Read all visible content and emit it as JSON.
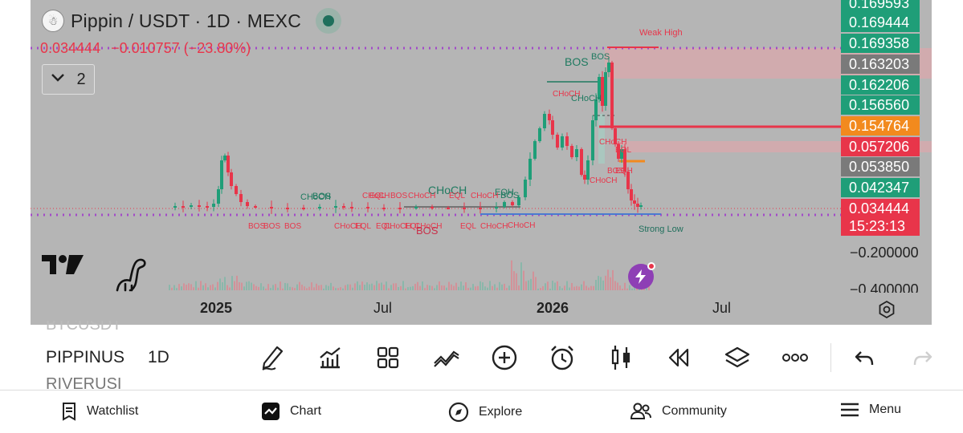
{
  "header": {
    "symbol_title": "Pippin / USDT · 1D · MEXC",
    "last_price": "0.034444",
    "change": "−0.010757 (−23.80%)",
    "collapsed_count": "2"
  },
  "chart_annotations": {
    "weak_high": "Weak High",
    "strong_low": "Strong Low",
    "labels_teal": [
      "BOS",
      "CHoCH",
      "BOS",
      "CHoCH",
      "BOS",
      "BOS",
      "CHoCH",
      "EQH"
    ],
    "labels_red": [
      "BOS",
      "BOS",
      "BOS",
      "CHoCH",
      "EQL",
      "EQL",
      "CHoCH",
      "EQL",
      "CHoCH",
      "BOS",
      "EQL",
      "CHoCH",
      "CHoCH",
      "CHoCH",
      "BOS",
      "EQL",
      "CHoCH",
      "EQL",
      "CHoCH",
      "CHoCH",
      "CHoCH",
      "EQL",
      "BOS",
      "EQH",
      "CHoCH"
    ]
  },
  "price_axis": {
    "tags": [
      {
        "value": "0.169593",
        "color": "#1f9e78"
      },
      {
        "value": "0.169444",
        "color": "#1f9e78"
      },
      {
        "value": "0.169358",
        "color": "#1f9e78"
      },
      {
        "value": "0.163203",
        "color": "#7a7a7a"
      },
      {
        "value": "0.162206",
        "color": "#1f9e78"
      },
      {
        "value": "0.156560",
        "color": "#1f9e78"
      },
      {
        "value": "0.154764",
        "color": "#f28a1e"
      },
      {
        "value": "0.057206",
        "color": "#e8354a"
      },
      {
        "value": "0.053850",
        "color": "#7a7a7a"
      },
      {
        "value": "0.042347",
        "color": "#1f9e78"
      },
      {
        "value": "0.034444",
        "color": "#e8354a"
      }
    ],
    "countdown": "15:23:13",
    "plain": [
      "−0.200000",
      "−0.400000"
    ]
  },
  "time_axis": [
    {
      "label": "2025",
      "bold": true
    },
    {
      "label": "Jul",
      "bold": false
    },
    {
      "label": "2026",
      "bold": true
    },
    {
      "label": "Jul",
      "bold": false
    }
  ],
  "watchlist": {
    "prev_symbol": "BTCUSDT",
    "current_symbol": "PIPPINUS",
    "next_symbol": "RIVERUSI",
    "interval": "1D"
  },
  "toolbar": {
    "icons": [
      "draw-icon",
      "indicators-icon",
      "templates-icon",
      "compare-icon",
      "add-icon",
      "alert-icon",
      "chart-type-icon",
      "replay-icon",
      "layers-icon",
      "more-icon",
      "undo-icon",
      "redo-icon"
    ]
  },
  "bottom_nav": {
    "watchlist": "Watchlist",
    "chart": "Chart",
    "explore": "Explore",
    "community": "Community",
    "menu": "Menu"
  },
  "colors": {
    "bull": "#1f9e78",
    "bear": "#e8354a",
    "purple_line": "#a24bc8",
    "chart_bg": "#b5b5b5"
  },
  "chart_data": {
    "type": "candlestick",
    "symbol": "Pippin / USDT",
    "interval": "1D",
    "exchange": "MEXC",
    "last": 0.034444,
    "change": -0.010757,
    "change_pct": -23.8,
    "levels": {
      "weak_high": 0.169358,
      "strong_low": 0.034444,
      "resistance": 0.154764
    },
    "x_ticks": [
      "2025",
      "Jul",
      "2026",
      "Jul"
    ]
  }
}
